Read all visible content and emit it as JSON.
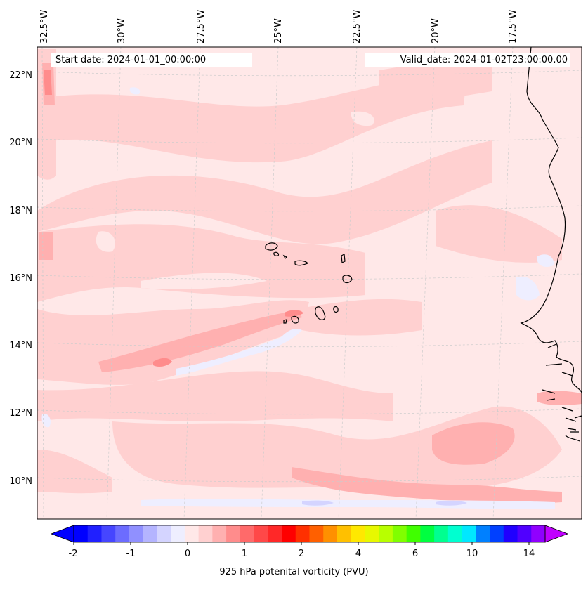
{
  "header": {
    "start_date": "Start date: 2024-01-01_00:00:00",
    "valid_date": "Valid_date: 2024-01-02T23:00:00.00"
  },
  "map": {
    "longitude_labels": [
      "32.5°W",
      "30°W",
      "27.5°W",
      "25°W",
      "22.5°W",
      "20°W",
      "17.5°W"
    ],
    "latitude_labels": [
      "22°N",
      "20°N",
      "18°N",
      "16°N",
      "14°N",
      "12°N",
      "10°N"
    ],
    "extent": {
      "lon_min": -32.6,
      "lon_max": -15.2,
      "lat_min": 8.9,
      "lat_max": 22.7
    },
    "gridlines": true,
    "background_color": "#ffe8e8",
    "coastline_color": "#000000"
  },
  "colorbar": {
    "label": "925 hPa potenital vorticity (PVU)",
    "tick_labels": [
      "-2",
      "-1",
      "0",
      "1",
      "2",
      "4",
      "6",
      "10",
      "14"
    ],
    "extend": "both",
    "colors": [
      "#0000ff",
      "#2020ff",
      "#4646ff",
      "#6c6cff",
      "#9090ff",
      "#b4b4ff",
      "#d4d4ff",
      "#eeeeff",
      "#ffe8e8",
      "#ffd0d0",
      "#ffb0b0",
      "#ff8c8c",
      "#ff6a6a",
      "#ff4848",
      "#ff2828",
      "#ff0000",
      "#ff3000",
      "#ff6000",
      "#ff9000",
      "#ffc000",
      "#ffe800",
      "#e8f800",
      "#b8ff00",
      "#80ff00",
      "#40ff00",
      "#00ff40",
      "#00ff90",
      "#00ffd0",
      "#00e8ff",
      "#0080ff",
      "#0040ff",
      "#2000ff",
      "#5000ff",
      "#9000ff"
    ],
    "under_color": "#0000ff",
    "over_color": "#c000ff"
  }
}
